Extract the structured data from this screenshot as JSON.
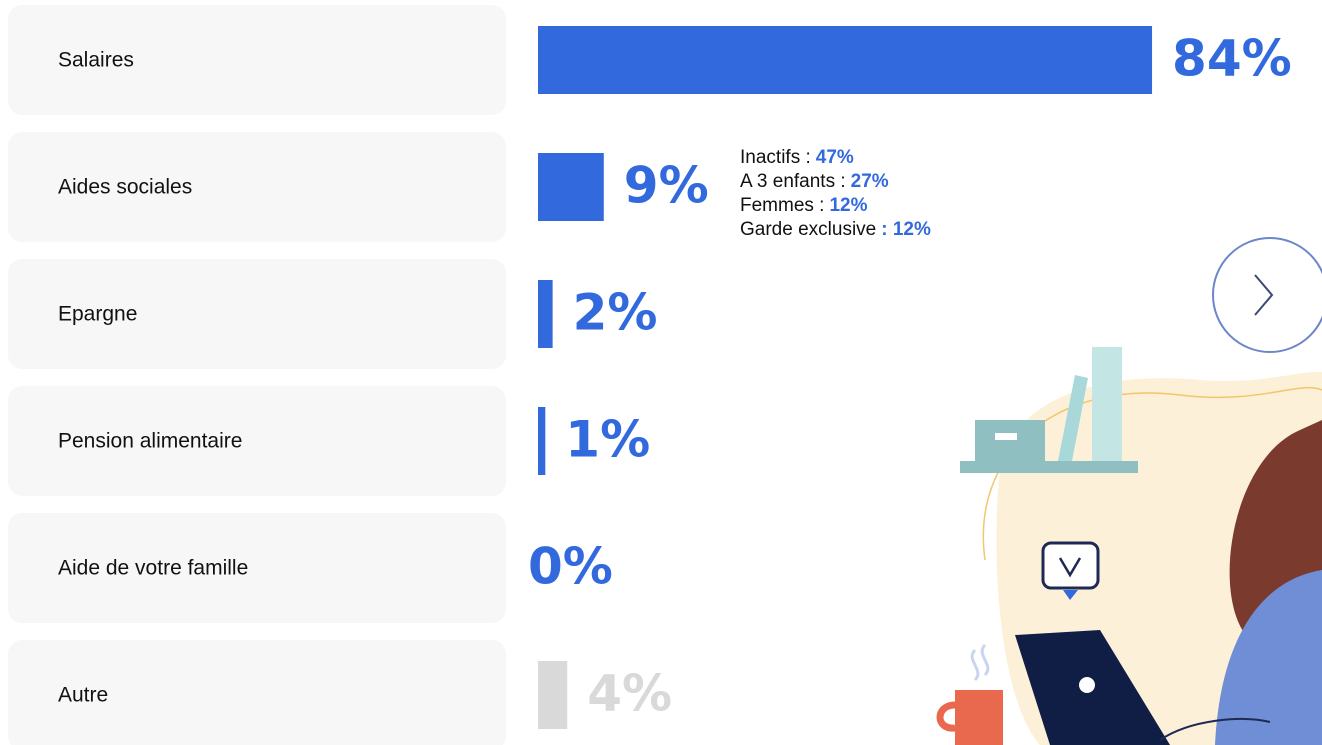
{
  "chart_data": {
    "type": "bar",
    "orientation": "horizontal",
    "categories": [
      "Salaires",
      "Aides sociales",
      "Epargne",
      "Pension alimentaire",
      "Aide de votre famille",
      "Autre"
    ],
    "values": [
      84,
      9,
      2,
      1,
      0,
      4
    ],
    "value_labels": [
      "84%",
      "9%",
      "2%",
      "1%",
      "0%",
      "4%"
    ],
    "colors": [
      "#326ade",
      "#326ade",
      "#326ade",
      "#326ade",
      "#326ade",
      "#d9d9d9"
    ],
    "annotations": [
      {
        "text": "Inactifs :",
        "value": "47%"
      },
      {
        "text": "A 3 enfants :",
        "value": "27%"
      },
      {
        "text": "Femmes :",
        "value": "12%"
      },
      {
        "text": "Garde exclusive",
        "value": ": 12%"
      }
    ]
  }
}
